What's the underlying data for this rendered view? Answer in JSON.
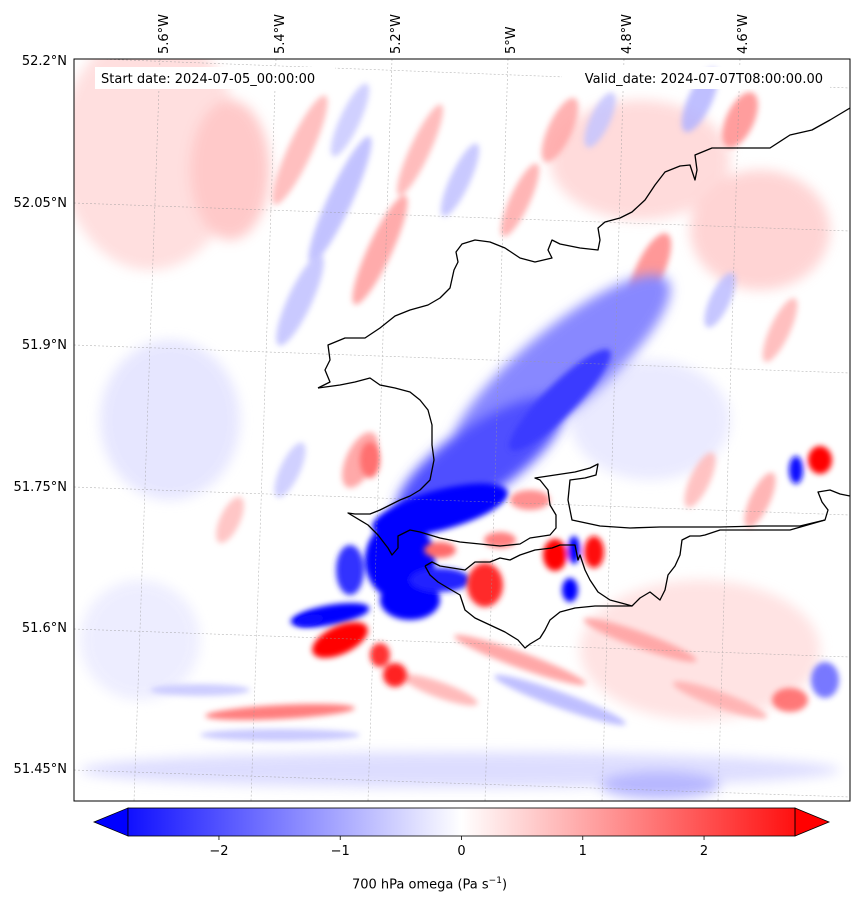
{
  "map": {
    "start_label": "Start date: 2024-07-05_00:00:00",
    "valid_label": "Valid_date: 2024-07-07T08:00:00.00",
    "lon_labels": [
      "5.6°W",
      "5.4°W",
      "5.2°W",
      "5°W",
      "4.8°W",
      "4.6°W"
    ],
    "lat_labels": [
      "52.2°N",
      "52.05°N",
      "51.9°N",
      "51.75°N",
      "51.6°N",
      "51.45°N"
    ],
    "gridlines": "dashed"
  },
  "colorbar": {
    "label": "700 hPa omega (Pa s",
    "label_exp": "−1",
    "label_close": ")",
    "ticks": [
      "−2",
      "−1",
      "0",
      "1",
      "2"
    ],
    "min": -2.75,
    "max": 2.75,
    "colormap": "bwr",
    "colors": {
      "negative": "#0000ff",
      "zero": "#ffffff",
      "positive": "#ff0000"
    },
    "extend": "both"
  }
}
